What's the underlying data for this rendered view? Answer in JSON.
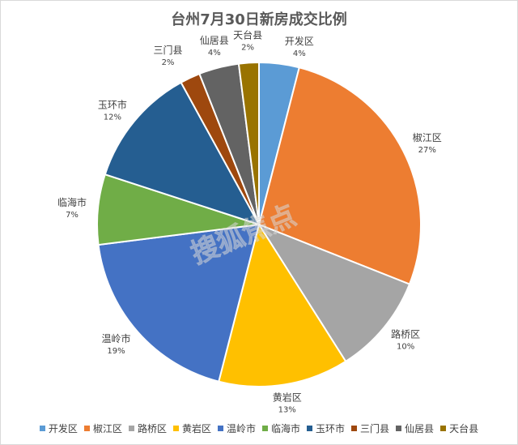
{
  "chart_data": {
    "type": "pie",
    "title": "台州7月30日新房成交比例",
    "categories": [
      "开发区",
      "椒江区",
      "路桥区",
      "黄岩区",
      "温岭市",
      "临海市",
      "玉环市",
      "三门县",
      "仙居县",
      "天台县"
    ],
    "values": [
      4,
      27,
      10,
      13,
      19,
      7,
      12,
      2,
      4,
      2
    ],
    "value_labels": [
      "4%",
      "27%",
      "10%",
      "13%",
      "19%",
      "7%",
      "12%",
      "2%",
      "4%",
      "2%"
    ],
    "colors": [
      "#5B9BD5",
      "#ED7D31",
      "#A5A5A5",
      "#FFC000",
      "#4472C4",
      "#70AD47",
      "#255E91",
      "#9E480E",
      "#636363",
      "#997300"
    ],
    "legend_position": "bottom",
    "start_angle_deg": 0,
    "direction": "clockwise"
  },
  "watermark": {
    "text": "搜狐焦点"
  }
}
